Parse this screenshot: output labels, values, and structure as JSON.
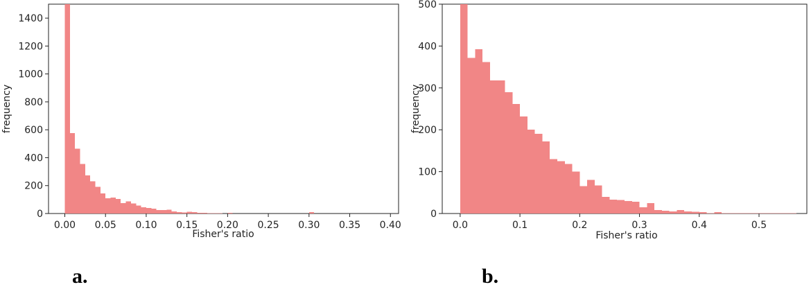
{
  "colors": {
    "bar": "#f08080",
    "axis": "#222222"
  },
  "chart_data": [
    {
      "panel_label": "a.",
      "type": "bar",
      "xlabel": "Fisher's ratio",
      "ylabel": "frequency",
      "xlim": [
        -0.02,
        0.41
      ],
      "ylim": [
        0,
        1500
      ],
      "xticks": [
        0.0,
        0.05,
        0.1,
        0.15,
        0.2,
        0.25,
        0.3,
        0.35,
        0.4
      ],
      "xtick_labels": [
        "0.00",
        "0.05",
        "0.10",
        "0.15",
        "0.20",
        "0.25",
        "0.30",
        "0.35",
        "0.40"
      ],
      "yticks": [
        0,
        200,
        400,
        600,
        800,
        1000,
        1200,
        1400
      ],
      "ytick_labels": [
        "0",
        "200",
        "400",
        "600",
        "800",
        "1000",
        "1200",
        "1400"
      ],
      "bin_start": 0.0,
      "bin_width": 0.00625,
      "values": [
        1500,
        575,
        465,
        355,
        272,
        232,
        192,
        145,
        110,
        115,
        105,
        75,
        88,
        72,
        57,
        45,
        40,
        34,
        25,
        24,
        27,
        15,
        10,
        8,
        12,
        9,
        6,
        4,
        3,
        2,
        2,
        1,
        4,
        1,
        1,
        1,
        1,
        1,
        1,
        1,
        1,
        1,
        1,
        1,
        1,
        1,
        1,
        1,
        10,
        1,
        1,
        1,
        1,
        1,
        1,
        1,
        1,
        1,
        1,
        1,
        1,
        1,
        1,
        1
      ]
    },
    {
      "panel_label": "b.",
      "type": "bar",
      "xlabel": "Fisher's ratio",
      "ylabel": "frequency",
      "xlim": [
        -0.03,
        0.58
      ],
      "ylim": [
        0,
        500
      ],
      "xticks": [
        0.0,
        0.1,
        0.2,
        0.3,
        0.4,
        0.5
      ],
      "xtick_labels": [
        "0.0",
        "0.1",
        "0.2",
        "0.3",
        "0.4",
        "0.5"
      ],
      "yticks": [
        0,
        100,
        200,
        300,
        400,
        500
      ],
      "ytick_labels": [
        "0",
        "100",
        "200",
        "300",
        "400",
        "500"
      ],
      "bin_start": 0.0,
      "bin_width": 0.0125,
      "values": [
        500,
        372,
        392,
        362,
        318,
        318,
        290,
        262,
        232,
        200,
        190,
        172,
        130,
        125,
        118,
        100,
        65,
        80,
        67,
        40,
        33,
        32,
        30,
        28,
        15,
        25,
        8,
        7,
        5,
        8,
        5,
        4,
        3,
        1,
        3,
        1,
        1,
        1,
        1,
        1,
        1,
        1,
        1,
        1,
        1
      ]
    }
  ]
}
